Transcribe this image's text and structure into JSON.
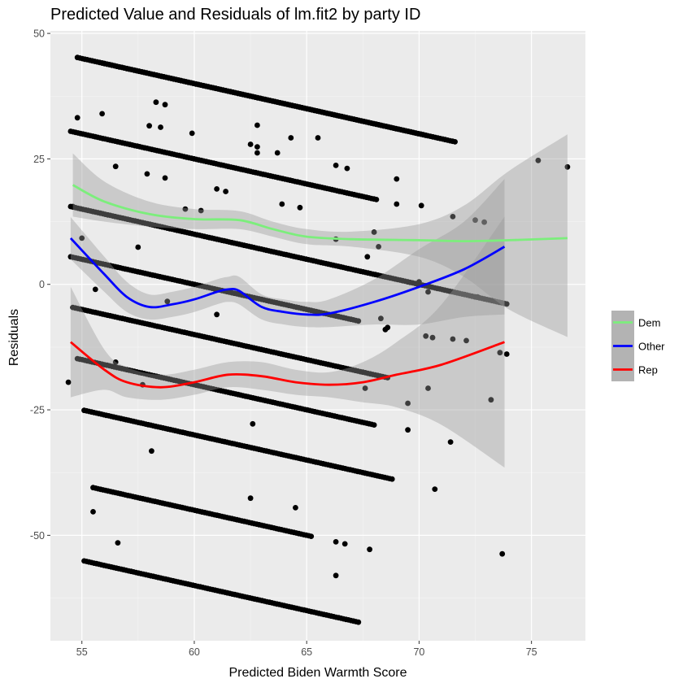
{
  "chart_data": {
    "type": "scatter",
    "title": "Predicted Value and Residuals of lm.fit2 by party ID",
    "xlabel": "Predicted Biden Warmth Score",
    "ylabel": "Residuals",
    "xlim": [
      53.6,
      77.4
    ],
    "ylim": [
      -71,
      50.5
    ],
    "x_ticks": [
      55,
      60,
      65,
      70,
      75
    ],
    "y_ticks": [
      -50,
      -25,
      0,
      25,
      50
    ],
    "x_tick_labels": [
      "55",
      "60",
      "65",
      "70",
      "75"
    ],
    "y_tick_labels": [
      "-50",
      "-25",
      "0",
      "25",
      "50"
    ],
    "grid": true,
    "legend_position": "right",
    "point_color": "#000000",
    "band_color": "#999999",
    "bands": [
      {
        "x_start": 54.8,
        "x_end": 70.3,
        "y_at_x0": 45.2,
        "slope": -1
      },
      {
        "x_start": 55.9,
        "x_end": 71.6,
        "y_at_x0": 44.1,
        "slope": -1
      },
      {
        "x_start": 54.5,
        "x_end": 68.1,
        "y_at_x0": 30.5,
        "slope": -1
      },
      {
        "x_start": 54.5,
        "x_end": 73.9,
        "y_at_x0": 15.5,
        "slope": -1
      },
      {
        "x_start": 54.5,
        "x_end": 67.3,
        "y_at_x0": 5.5,
        "slope": -1
      },
      {
        "x_start": 54.6,
        "x_end": 68.6,
        "y_at_x0": -4.6,
        "slope": -1
      },
      {
        "x_start": 54.8,
        "x_end": 68.0,
        "y_at_x0": -14.8,
        "slope": -1
      },
      {
        "x_start": 55.1,
        "x_end": 68.8,
        "y_at_x0": -25.1,
        "slope": -1
      },
      {
        "x_start": 55.5,
        "x_end": 65.2,
        "y_at_x0": -40.5,
        "slope": -1
      },
      {
        "x_start": 55.1,
        "x_end": 67.3,
        "y_at_x0": -55.1,
        "slope": -1
      }
    ],
    "extra_points": [
      [
        54.8,
        33.2
      ],
      [
        55.9,
        34.0
      ],
      [
        58.3,
        36.3
      ],
      [
        58.7,
        35.8
      ],
      [
        58.0,
        31.6
      ],
      [
        58.5,
        31.3
      ],
      [
        59.9,
        30.1
      ],
      [
        62.8,
        31.7
      ],
      [
        64.3,
        29.2
      ],
      [
        62.5,
        27.9
      ],
      [
        62.8,
        27.4
      ],
      [
        62.8,
        26.2
      ],
      [
        63.7,
        26.2
      ],
      [
        65.5,
        29.2
      ],
      [
        66.3,
        23.7
      ],
      [
        66.8,
        23.1
      ],
      [
        56.5,
        23.5
      ],
      [
        57.9,
        22.0
      ],
      [
        58.7,
        21.2
      ],
      [
        61.0,
        19.0
      ],
      [
        61.4,
        18.5
      ],
      [
        59.6,
        15.0
      ],
      [
        60.3,
        14.7
      ],
      [
        63.9,
        16.0
      ],
      [
        64.7,
        15.3
      ],
      [
        69.0,
        21.0
      ],
      [
        69.0,
        16.0
      ],
      [
        68.0,
        10.4
      ],
      [
        66.3,
        9.0
      ],
      [
        55.0,
        9.2
      ],
      [
        57.5,
        7.4
      ],
      [
        70.1,
        15.7
      ],
      [
        72.5,
        12.8
      ],
      [
        72.9,
        12.4
      ],
      [
        71.5,
        13.5
      ],
      [
        54.6,
        15.5
      ],
      [
        68.2,
        7.5
      ],
      [
        67.7,
        5.5
      ],
      [
        69.5,
        0.5
      ],
      [
        70.0,
        0.5
      ],
      [
        70.4,
        -1.5
      ],
      [
        55.6,
        -1.0
      ],
      [
        58.8,
        -3.4
      ],
      [
        61.0,
        -6.0
      ],
      [
        68.5,
        -9.0
      ],
      [
        70.3,
        -10.3
      ],
      [
        70.6,
        -10.6
      ],
      [
        71.5,
        -10.9
      ],
      [
        72.1,
        -11.2
      ],
      [
        72.6,
        -2.5
      ],
      [
        72.5,
        -2.5
      ],
      [
        73.6,
        -13.6
      ],
      [
        73.9,
        -13.9
      ],
      [
        54.4,
        -19.5
      ],
      [
        67.6,
        -20.7
      ],
      [
        70.4,
        -20.7
      ],
      [
        69.5,
        -23.7
      ],
      [
        73.2,
        -23.0
      ],
      [
        62.6,
        -27.8
      ],
      [
        69.5,
        -29.0
      ],
      [
        58.1,
        -33.2
      ],
      [
        71.4,
        -31.4
      ],
      [
        70.7,
        -40.8
      ],
      [
        55.5,
        -45.3
      ],
      [
        62.5,
        -42.6
      ],
      [
        64.5,
        -44.5
      ],
      [
        56.6,
        -51.5
      ],
      [
        66.3,
        -51.3
      ],
      [
        66.7,
        -51.7
      ],
      [
        67.8,
        -52.8
      ],
      [
        66.3,
        -58.0
      ],
      [
        73.7,
        -53.7
      ],
      [
        75.3,
        24.7
      ],
      [
        76.6,
        23.4
      ],
      [
        68.6,
        -8.6
      ],
      [
        68.3,
        -6.8
      ],
      [
        57.7,
        -20.0
      ],
      [
        56.5,
        -15.5
      ]
    ],
    "series": [
      {
        "name": "Dem",
        "color": "#7CEE7C",
        "x": [
          54.6,
          56,
          58,
          60,
          62,
          63.5,
          65,
          67,
          70,
          72,
          74,
          76.6
        ],
        "y": [
          19.8,
          16.5,
          14.0,
          13.0,
          12.8,
          11.0,
          9.5,
          9.0,
          8.8,
          8.6,
          8.8,
          9.2
        ],
        "ci_lower": [
          13.5,
          12.5,
          11.5,
          11.0,
          11.0,
          9.5,
          8.0,
          7.5,
          5.5,
          1.5,
          -5.0,
          -10.5
        ],
        "ci_upper": [
          26.1,
          20.5,
          16.5,
          15.0,
          14.6,
          12.5,
          11.0,
          10.5,
          12.0,
          15.7,
          22.6,
          29.9
        ]
      },
      {
        "name": "Other",
        "color": "#0000FF",
        "x": [
          54.5,
          56,
          57,
          58,
          59,
          60,
          61,
          61.5,
          62,
          63,
          64,
          65,
          66,
          68,
          70,
          72,
          73.8
        ],
        "y": [
          9.2,
          2.0,
          -2.5,
          -4.5,
          -4.0,
          -3.0,
          -1.5,
          -1.0,
          -1.3,
          -4.5,
          -5.5,
          -6.0,
          -5.8,
          -3.5,
          -0.5,
          3.0,
          7.5
        ],
        "ci_lower": [
          5.0,
          -1.5,
          -5.5,
          -7.0,
          -6.5,
          -5.5,
          -4.0,
          -3.5,
          -4.0,
          -7.0,
          -8.0,
          -8.5,
          -8.5,
          -8.0,
          -8.0,
          -6.5,
          -6.0
        ],
        "ci_upper": [
          13.4,
          5.5,
          0.5,
          -2.0,
          -1.5,
          -0.5,
          1.0,
          1.5,
          1.5,
          -2.0,
          -3.0,
          -3.5,
          -3.0,
          1.0,
          7.0,
          12.5,
          21.0
        ]
      },
      {
        "name": "Rep",
        "color": "#FF0000",
        "x": [
          54.5,
          56,
          57,
          58.5,
          60,
          61.5,
          63,
          64.5,
          66,
          67.5,
          69,
          71,
          73.8
        ],
        "y": [
          -11.5,
          -17.0,
          -19.5,
          -20.5,
          -19.5,
          -18.0,
          -18.3,
          -19.5,
          -20.0,
          -19.5,
          -18.0,
          -16.0,
          -11.5
        ],
        "ci_lower": [
          -22.5,
          -21.0,
          -22.5,
          -23.0,
          -22.0,
          -20.5,
          -21.0,
          -22.0,
          -22.5,
          -23.5,
          -24.5,
          -28.0,
          -36.5
        ],
        "ci_upper": [
          -0.5,
          -13.0,
          -16.5,
          -18.0,
          -17.0,
          -15.5,
          -15.5,
          -17.0,
          -17.5,
          -15.5,
          -11.5,
          -4.0,
          13.5
        ]
      }
    ]
  }
}
